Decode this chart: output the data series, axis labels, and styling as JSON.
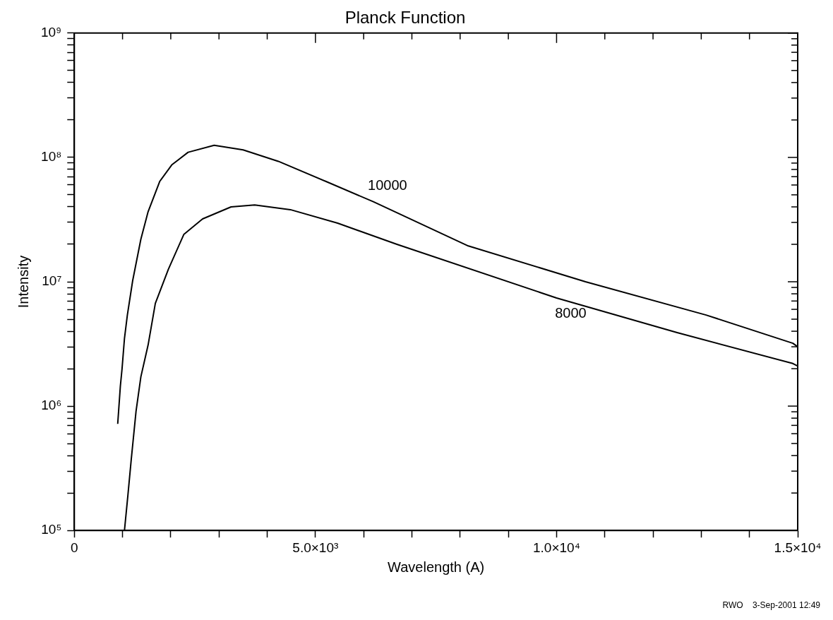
{
  "chart_data": {
    "type": "line",
    "title": "Planck Function",
    "xlabel": "Wavelength (A)",
    "ylabel": "Intensity",
    "annotations": [
      "RWO    3-Sep-2001 12:49"
    ],
    "log": "y",
    "grid": false,
    "legend": false,
    "marker": "none",
    "line_style": "solid",
    "xlim": [
      0,
      15000
    ],
    "ylim": [
      100000,
      1000000000
    ],
    "xticks": [
      0,
      {
        "value": 1000,
        "label": null
      },
      {
        "value": 2000,
        "label": null
      },
      {
        "value": 3000,
        "label": null
      },
      {
        "value": 4000,
        "label": null
      },
      {
        "value": 5000,
        "label": "5.0×10³"
      },
      {
        "value": 6000,
        "label": null
      },
      {
        "value": 7000,
        "label": null
      },
      {
        "value": 8000,
        "label": null
      },
      {
        "value": 9000,
        "label": null
      },
      {
        "value": 10000,
        "label": "1.0×10⁴"
      },
      {
        "value": 11000,
        "label": null
      },
      {
        "value": 12000,
        "label": null
      },
      {
        "value": 13000,
        "label": null
      },
      {
        "value": 14000,
        "label": null
      },
      {
        "value": 15000,
        "label": "1.5×10⁴"
      }
    ],
    "yticks": [
      {
        "value": 100000,
        "label": "10⁵"
      },
      {
        "value": 200000,
        "label": null
      },
      {
        "value": 300000,
        "label": null
      },
      {
        "value": 400000,
        "label": null
      },
      {
        "value": 500000,
        "label": null
      },
      {
        "value": 600000,
        "label": null
      },
      {
        "value": 700000,
        "label": null
      },
      {
        "value": 800000,
        "label": null
      },
      {
        "value": 900000,
        "label": null
      },
      {
        "value": 1000000,
        "label": "10⁶"
      },
      {
        "value": 2000000,
        "label": null
      },
      {
        "value": 3000000,
        "label": null
      },
      {
        "value": 4000000,
        "label": null
      },
      {
        "value": 5000000,
        "label": null
      },
      {
        "value": 6000000,
        "label": null
      },
      {
        "value": 7000000,
        "label": null
      },
      {
        "value": 8000000,
        "label": null
      },
      {
        "value": 9000000,
        "label": null
      },
      {
        "value": 10000000,
        "label": "10⁷"
      },
      {
        "value": 20000000,
        "label": null
      },
      {
        "value": 30000000,
        "label": null
      },
      {
        "value": 40000000,
        "label": null
      },
      {
        "value": 50000000,
        "label": null
      },
      {
        "value": 60000000,
        "label": null
      },
      {
        "value": 70000000,
        "label": null
      },
      {
        "value": 80000000,
        "label": null
      },
      {
        "value": 90000000,
        "label": null
      },
      {
        "value": 100000000,
        "label": "10⁸"
      },
      {
        "value": 200000000,
        "label": null
      },
      {
        "value": 300000000,
        "label": null
      },
      {
        "value": 400000000,
        "label": null
      },
      {
        "value": 500000000,
        "label": null
      },
      {
        "value": 600000000,
        "label": null
      },
      {
        "value": 700000000,
        "label": null
      },
      {
        "value": 800000000,
        "label": null
      },
      {
        "value": 900000000,
        "label": null
      },
      {
        "value": 1000000000,
        "label": "10⁹"
      }
    ],
    "series": [
      {
        "name": "10000",
        "color": "#000000",
        "x": [
          900,
          955,
          990,
          1040,
          1100,
          1210,
          1380,
          1530,
          1770,
          2020,
          2360,
          2900,
          3500,
          4230,
          5220,
          6200,
          8170,
          10600,
          13100,
          14900,
          15000
        ],
        "values": [
          720000,
          1450000,
          2000000,
          3500000,
          5400000,
          10200000,
          22000000,
          36600000,
          64000000,
          87000000,
          110000000,
          125000000,
          115000000,
          93000000,
          64000000,
          44000000,
          19400000,
          10000000,
          5400000,
          3200000,
          3000000
        ]
      },
      {
        "name": "8000",
        "color": "#000000",
        "x": [
          1040,
          1110,
          1180,
          1280,
          1380,
          1530,
          1680,
          1950,
          2270,
          2660,
          3250,
          3740,
          4480,
          5460,
          6690,
          10000,
          12500,
          14900,
          15000
        ],
        "values": [
          100000,
          190000,
          370000,
          910000,
          1720000,
          3100000,
          6700000,
          12600000,
          24000000,
          32000000,
          40000000,
          41500000,
          38000000,
          29600000,
          20000000,
          7400000,
          3900000,
          2200000,
          2100000
        ]
      }
    ]
  }
}
